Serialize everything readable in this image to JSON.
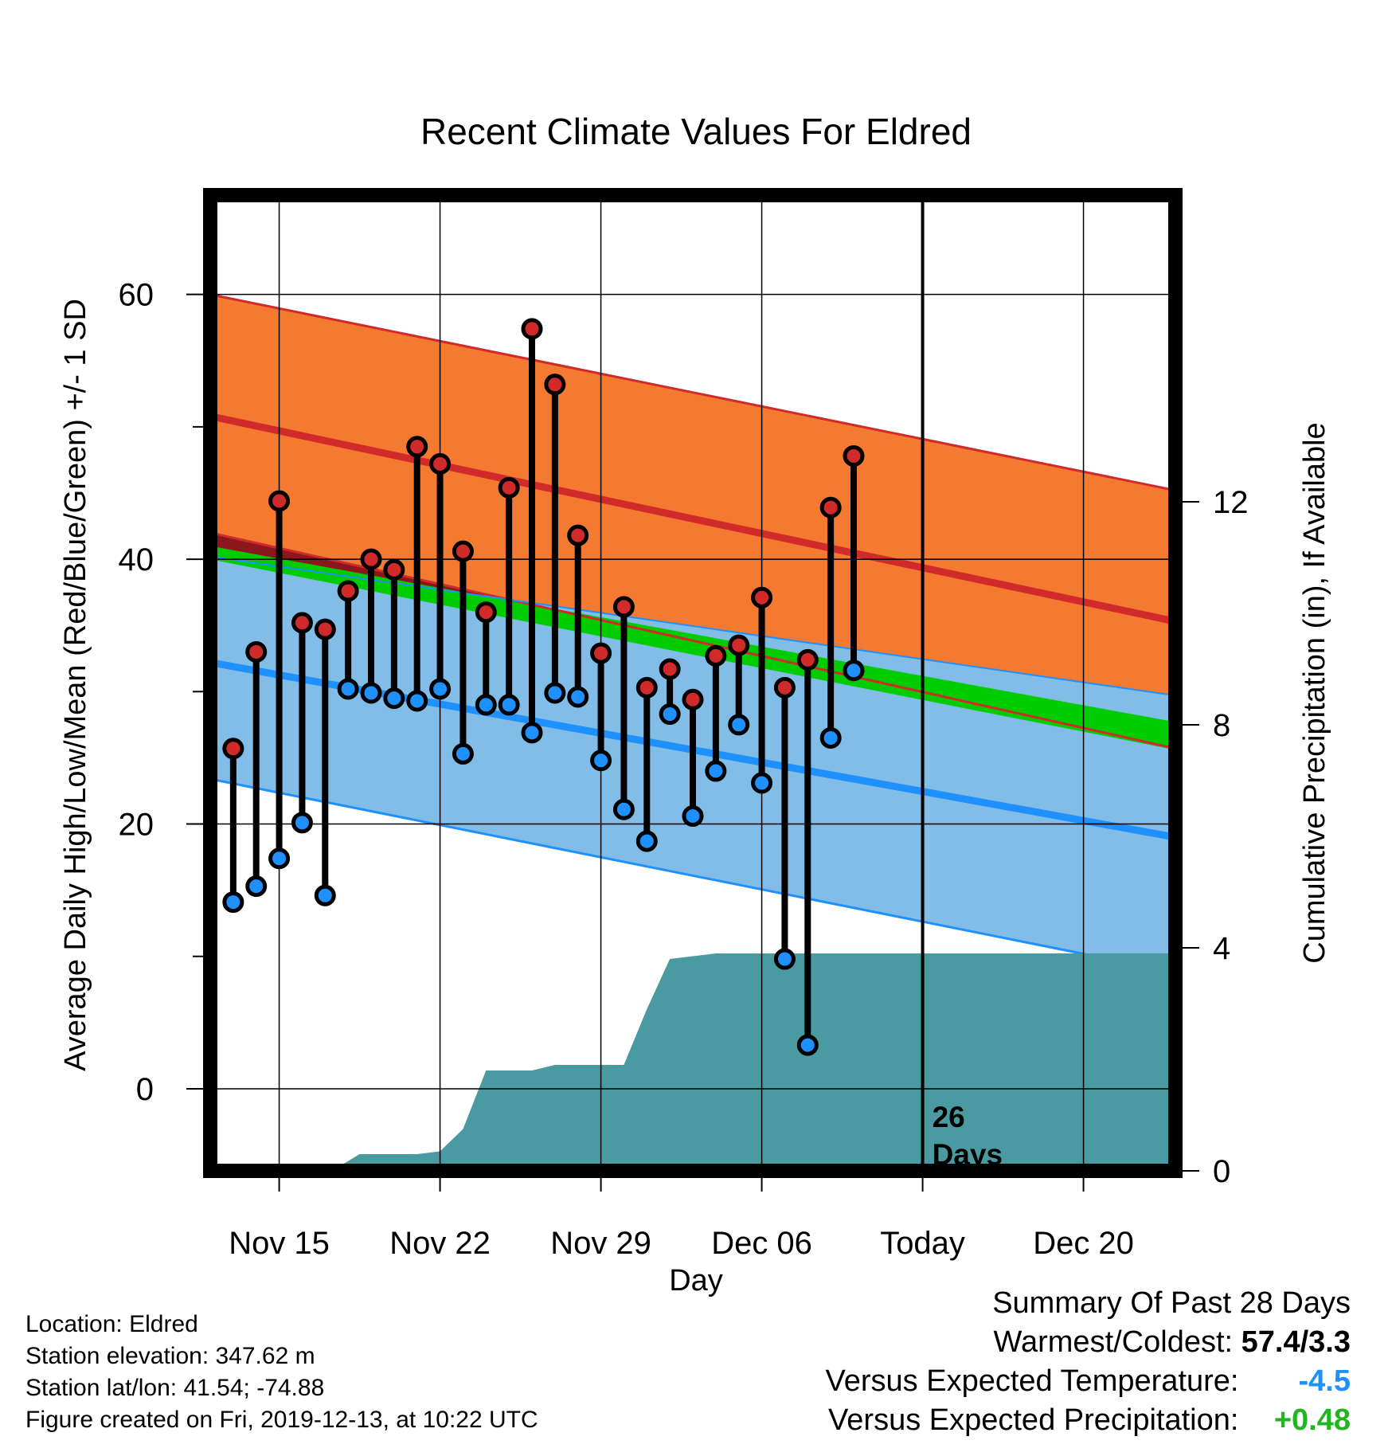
{
  "chart_data": {
    "type": "line",
    "title": "Recent Climate Values For Eldred",
    "xlabel": "Day",
    "ylabel": "Average Daily High/Low/Mean (Red/Blue/Green) +/- 1 SD",
    "y2label": "Cumulative Precipitation (in), If Available",
    "xlim": [
      0,
      42
    ],
    "ylim": [
      -6.2,
      67.5
    ],
    "y2lim": [
      0,
      17.5
    ],
    "x_ticks": [
      {
        "x": 3,
        "label": "Nov 15"
      },
      {
        "x": 10,
        "label": "Nov 22"
      },
      {
        "x": 17,
        "label": "Nov 29"
      },
      {
        "x": 24,
        "label": "Dec 06"
      },
      {
        "x": 31,
        "label": "Today"
      },
      {
        "x": 38,
        "label": "Dec 20"
      }
    ],
    "y_ticks": [
      0,
      20,
      40,
      60
    ],
    "y_minor_ticks": [
      10,
      30,
      50
    ],
    "y2_ticks": [
      0,
      4,
      8,
      12
    ],
    "grid": true,
    "today_x": 31,
    "today_annotation": [
      "26",
      "Days"
    ],
    "normal_high": {
      "x": [
        0,
        42
      ],
      "mean": [
        50.8,
        35.3
      ],
      "upper": [
        60.0,
        45.2
      ],
      "lower": [
        42.0,
        25.7
      ]
    },
    "normal_mean": {
      "x": [
        0,
        42
      ],
      "mean": [
        40.6,
        26.7
      ],
      "upper": [
        41.0,
        27.7
      ],
      "lower": [
        40.0,
        25.6
      ]
    },
    "normal_low": {
      "x": [
        0,
        42
      ],
      "mean": [
        32.2,
        19.0
      ],
      "upper": [
        40.2,
        29.7
      ],
      "lower": [
        23.4,
        8.8
      ]
    },
    "observed": {
      "x": [
        1,
        2,
        3,
        4,
        5,
        6,
        7,
        8,
        9,
        10,
        11,
        12,
        13,
        14,
        15,
        16,
        17,
        18,
        19,
        20,
        21,
        22,
        23,
        24,
        25,
        26,
        27,
        28
      ],
      "high": [
        25.7,
        33.0,
        44.4,
        35.2,
        34.7,
        37.6,
        40.0,
        39.2,
        48.5,
        47.2,
        40.6,
        36.0,
        45.4,
        57.4,
        53.2,
        41.8,
        32.9,
        36.4,
        30.3,
        31.7,
        29.4,
        32.7,
        33.5,
        37.1,
        30.3,
        32.4,
        43.9,
        47.8
      ],
      "low": [
        14.1,
        15.3,
        17.4,
        20.1,
        14.6,
        30.2,
        29.9,
        29.5,
        29.3,
        30.2,
        25.3,
        29.0,
        29.0,
        26.9,
        29.9,
        29.6,
        24.8,
        21.1,
        18.7,
        28.3,
        20.6,
        24.0,
        27.5,
        23.1,
        9.8,
        3.3,
        26.5,
        31.6
      ]
    },
    "precipitation": {
      "x": [
        0,
        5,
        5.5,
        6.5,
        9,
        10,
        11,
        12,
        13,
        14,
        15,
        16,
        17,
        18,
        19,
        20,
        21,
        22,
        23,
        24,
        31,
        42
      ],
      "cumulative": [
        0,
        0,
        0.05,
        0.3,
        0.3,
        0.35,
        0.75,
        1.8,
        1.8,
        1.8,
        1.9,
        1.9,
        1.9,
        1.9,
        2.9,
        3.8,
        3.85,
        3.9,
        3.9,
        3.9,
        3.9,
        3.9
      ]
    },
    "colors": {
      "high_band": "#f47a32",
      "high_line": "#d12a2a",
      "mean_band": "#00cc00",
      "mean_gap": "#8b161b",
      "low_band": "#81bde6",
      "low_line": "#1e90ff",
      "precip": "#4a9aa2",
      "high_marker": "#d12a2a",
      "low_marker": "#1e90ff"
    }
  },
  "info": {
    "location": "Location: Eldred",
    "elevation": "Station elevation: 347.62 m",
    "latlon": "Station lat/lon: 41.54; -74.88",
    "created": "Figure created on Fri, 2019-12-13, at 10:22 UTC"
  },
  "summary": {
    "title": "Summary Of Past 28 Days",
    "warm_cold_label": "Warmest/Coldest:",
    "warm_cold_value": "57.4/3.3",
    "temp_label": "Versus Expected Temperature:",
    "temp_value": "-4.5",
    "temp_color": "#1e90ff",
    "precip_label": "Versus Expected Precipitation:",
    "precip_value": "+0.48",
    "precip_color": "#22b522"
  }
}
